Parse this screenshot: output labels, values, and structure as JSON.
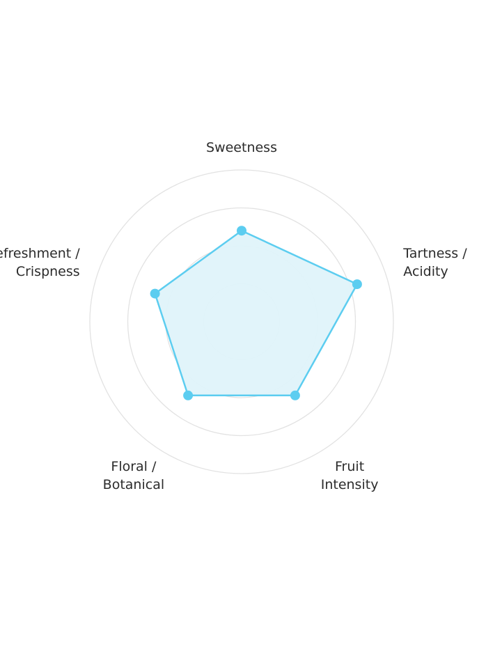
{
  "chart_data": {
    "type": "radar",
    "axes": [
      {
        "label_lines": [
          "Sweetness"
        ]
      },
      {
        "label_lines": [
          "Tartness /",
          "Acidity"
        ]
      },
      {
        "label_lines": [
          "Fruit",
          "Intensity"
        ]
      },
      {
        "label_lines": [
          "Floral /",
          "Botanical"
        ]
      },
      {
        "label_lines": [
          "Refreshment /",
          "Crispness"
        ]
      }
    ],
    "values": [
      3,
      4,
      3,
      3,
      3
    ],
    "range": [
      0,
      5
    ],
    "grid_rings": 4,
    "grid": true,
    "legend": "none",
    "colors": {
      "line": "#5ccdf0",
      "fill": "#dff3fa",
      "point": "#5ccdf0",
      "grid": "#e2e2e2",
      "label": "#2b2b2b"
    }
  }
}
